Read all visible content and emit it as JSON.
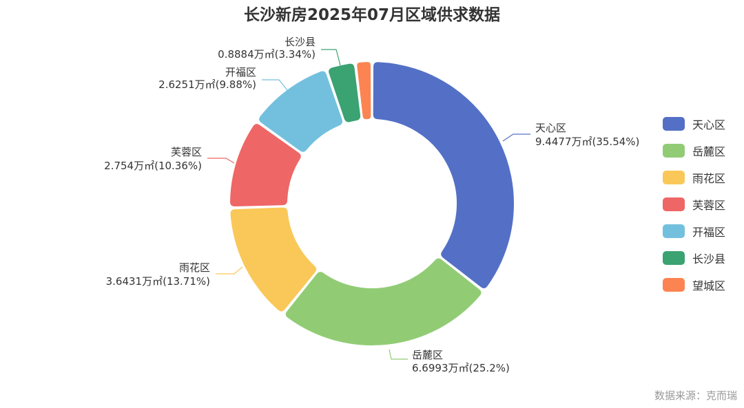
{
  "chart_data": {
    "type": "pie",
    "title": "长沙新房2025年07月区域供求数据",
    "source": "数据来源：克而瑞",
    "legend_position": "right",
    "slices": [
      {
        "name": "天心区",
        "value_label": "9.4477万㎡(35.54%)",
        "value": 9.4477,
        "percent": 35.54,
        "color": "#5470c6"
      },
      {
        "name": "岳麓区",
        "value_label": "6.6993万㎡(25.2%)",
        "value": 6.6993,
        "percent": 25.2,
        "color": "#91cc75"
      },
      {
        "name": "雨花区",
        "value_label": "3.6431万㎡(13.71%)",
        "value": 3.6431,
        "percent": 13.71,
        "color": "#fac858"
      },
      {
        "name": "芙蓉区",
        "value_label": "2.754万㎡(10.36%)",
        "value": 2.754,
        "percent": 10.36,
        "color": "#ee6666"
      },
      {
        "name": "开福区",
        "value_label": "2.6251万㎡(9.88%)",
        "value": 2.6251,
        "percent": 9.88,
        "color": "#73c0de"
      },
      {
        "name": "长沙县",
        "value_label": "0.8884万㎡(3.34%)",
        "value": 0.8884,
        "percent": 3.34,
        "color": "#3ba272"
      },
      {
        "name": "望城区",
        "value_label": "",
        "value": 0.5,
        "percent": 1.88,
        "color": "#fc8452"
      }
    ]
  }
}
